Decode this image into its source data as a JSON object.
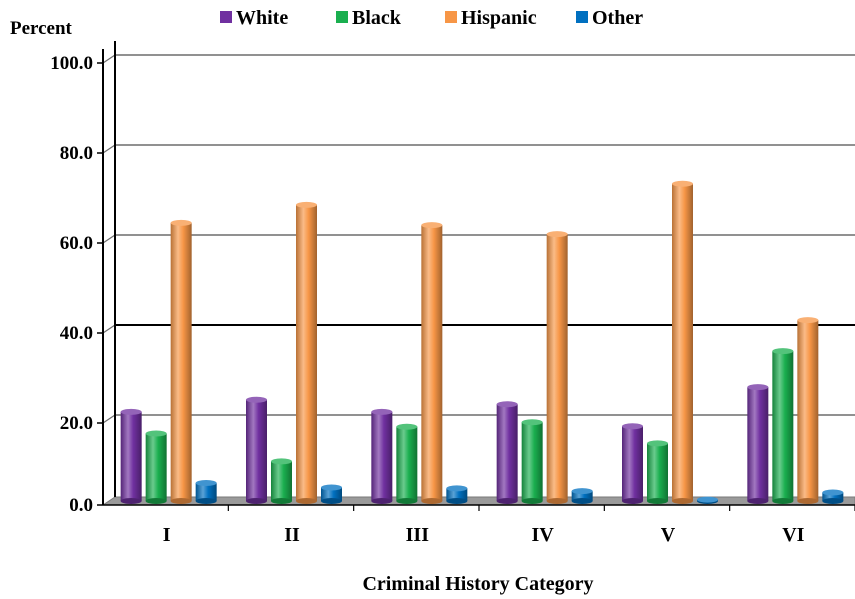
{
  "chart_data": {
    "type": "bar",
    "title": "",
    "xlabel": "Criminal History Category",
    "ylabel": "Percent",
    "ylim": [
      0,
      100
    ],
    "yticks": [
      "0.0",
      "20.0",
      "40.0",
      "60.0",
      "80.0",
      "100.0"
    ],
    "categories": [
      "I",
      "II",
      "III",
      "IV",
      "V",
      "VI"
    ],
    "series": [
      {
        "name": "White",
        "color": "#7030a0",
        "values": [
          19.8,
          22.5,
          19.8,
          21.5,
          16.6,
          25.3
        ]
      },
      {
        "name": "Black",
        "color": "#1aaf4f",
        "values": [
          15.0,
          8.8,
          16.5,
          17.5,
          12.8,
          33.3
        ]
      },
      {
        "name": "Hispanic",
        "color": "#f79646",
        "values": [
          61.8,
          65.8,
          61.3,
          59.3,
          70.5,
          40.2
        ]
      },
      {
        "name": "Other",
        "color": "#0070c0",
        "values": [
          4.0,
          3.0,
          2.8,
          2.2,
          0.3,
          1.9
        ]
      }
    ],
    "grid": true,
    "legend": "top"
  }
}
